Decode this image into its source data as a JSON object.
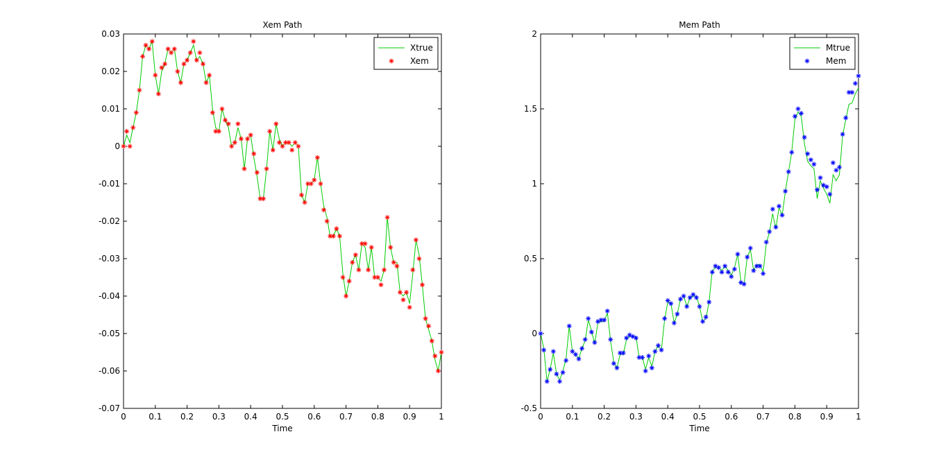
{
  "chart_data": [
    {
      "type": "line",
      "title": "Xem Path",
      "xlabel": "Time",
      "ylabel": "",
      "xlim": [
        0,
        1
      ],
      "ylim": [
        -0.07,
        0.03
      ],
      "grid": false,
      "legend_position": "top-right",
      "xticks": [
        0,
        0.1,
        0.2,
        0.3,
        0.4,
        0.5,
        0.6,
        0.7,
        0.8,
        0.9,
        1
      ],
      "xtick_labels": [
        "0",
        "0.1",
        "0.2",
        "0.3",
        "0.4",
        "0.5",
        "0.6",
        "0.7",
        "0.8",
        "0.9",
        "1"
      ],
      "yticks": [
        0.03,
        0.02,
        0.01,
        0,
        -0.01,
        -0.02,
        -0.03,
        -0.04,
        -0.05,
        -0.06,
        -0.07
      ],
      "ytick_labels": [
        "0.03",
        "0.02",
        "0.01",
        "0",
        "-0.01",
        "-0.02",
        "-0.03",
        "-0.04",
        "-0.05",
        "-0.06",
        "-0.07"
      ],
      "x": [
        0,
        0.01,
        0.02,
        0.03,
        0.04,
        0.05,
        0.06,
        0.07,
        0.08,
        0.09,
        0.1,
        0.11,
        0.12,
        0.13,
        0.14,
        0.15,
        0.16,
        0.17,
        0.18,
        0.19,
        0.2,
        0.21,
        0.22,
        0.23,
        0.24,
        0.25,
        0.26,
        0.27,
        0.28,
        0.29,
        0.3,
        0.31,
        0.32,
        0.33,
        0.34,
        0.35,
        0.36,
        0.37,
        0.38,
        0.39,
        0.4,
        0.41,
        0.42,
        0.43,
        0.44,
        0.45,
        0.46,
        0.47,
        0.48,
        0.49,
        0.5,
        0.51,
        0.52,
        0.53,
        0.54,
        0.55,
        0.56,
        0.57,
        0.58,
        0.59,
        0.6,
        0.61,
        0.62,
        0.63,
        0.64,
        0.65,
        0.66,
        0.67,
        0.68,
        0.69,
        0.7,
        0.71,
        0.72,
        0.73,
        0.74,
        0.75,
        0.76,
        0.77,
        0.78,
        0.79,
        0.8,
        0.81,
        0.82,
        0.83,
        0.84,
        0.85,
        0.86,
        0.87,
        0.88,
        0.89,
        0.9,
        0.91,
        0.92,
        0.93,
        0.94,
        0.95,
        0.96,
        0.97,
        0.98,
        0.99,
        1
      ],
      "series": [
        {
          "name": "Xtrue",
          "style": "line",
          "color": "#00cc00",
          "values": [
            0,
            0.003,
            0.001,
            0.005,
            0.009,
            0.015,
            0.024,
            0.027,
            0.026,
            0.028,
            0.019,
            0.014,
            0.02,
            0.022,
            0.026,
            0.025,
            0.026,
            0.02,
            0.017,
            0.022,
            0.023,
            0.025,
            0.027,
            0.023,
            0.024,
            0.022,
            0.017,
            0.019,
            0.01,
            0.005,
            0.004,
            0.01,
            0.007,
            0.005,
            0,
            0.001,
            0.005,
            0.002,
            -0.006,
            0.002,
            0.003,
            -0.003,
            -0.008,
            -0.014,
            -0.014,
            -0.006,
            0.004,
            -0.001,
            0.006,
            0.002,
            0,
            0.001,
            0.001,
            0,
            0.001,
            0,
            -0.013,
            -0.015,
            -0.01,
            -0.01,
            -0.009,
            -0.003,
            -0.01,
            -0.016,
            -0.019,
            -0.024,
            -0.024,
            -0.022,
            -0.024,
            -0.034,
            -0.04,
            -0.036,
            -0.031,
            -0.029,
            -0.033,
            -0.026,
            -0.027,
            -0.033,
            -0.027,
            -0.035,
            -0.035,
            -0.036,
            -0.033,
            -0.019,
            -0.027,
            -0.031,
            -0.031,
            -0.039,
            -0.04,
            -0.039,
            -0.042,
            -0.034,
            -0.025,
            -0.029,
            -0.037,
            -0.046,
            -0.049,
            -0.052,
            -0.057,
            -0.06,
            -0.055
          ]
        },
        {
          "name": "Xem",
          "style": "marker",
          "marker": "*",
          "color": "#ff0000",
          "values": [
            0,
            0.004,
            0,
            0.005,
            0.009,
            0.015,
            0.024,
            0.027,
            0.026,
            0.028,
            0.019,
            0.014,
            0.021,
            0.022,
            0.026,
            0.025,
            0.026,
            0.02,
            0.017,
            0.022,
            0.023,
            0.025,
            0.028,
            0.023,
            0.025,
            0.022,
            0.017,
            0.019,
            0.009,
            0.004,
            0.004,
            0.01,
            0.007,
            0.006,
            0,
            0.001,
            0.006,
            0.002,
            -0.006,
            0.002,
            0.003,
            -0.002,
            -0.007,
            -0.014,
            -0.014,
            -0.006,
            0.004,
            -0.001,
            0.006,
            0.001,
            0,
            0.001,
            0.001,
            -0.001,
            0.001,
            0,
            -0.013,
            -0.015,
            -0.01,
            -0.01,
            -0.009,
            -0.003,
            -0.01,
            -0.017,
            -0.02,
            -0.024,
            -0.024,
            -0.022,
            -0.024,
            -0.035,
            -0.04,
            -0.036,
            -0.031,
            -0.029,
            -0.033,
            -0.026,
            -0.026,
            -0.033,
            -0.027,
            -0.035,
            -0.035,
            -0.037,
            -0.033,
            -0.019,
            -0.027,
            -0.031,
            -0.032,
            -0.039,
            -0.041,
            -0.039,
            -0.043,
            -0.033,
            -0.025,
            -0.03,
            -0.037,
            -0.046,
            -0.048,
            -0.052,
            -0.056,
            -0.06,
            -0.055
          ]
        }
      ]
    },
    {
      "type": "line",
      "title": "Mem Path",
      "xlabel": "Time",
      "ylabel": "",
      "xlim": [
        0,
        1
      ],
      "ylim": [
        -0.5,
        2
      ],
      "grid": false,
      "legend_position": "top-right",
      "xticks": [
        0,
        0.1,
        0.2,
        0.3,
        0.4,
        0.5,
        0.6,
        0.7,
        0.8,
        0.9,
        1
      ],
      "xtick_labels": [
        "0",
        "0.1",
        "0.2",
        "0.3",
        "0.4",
        "0.5",
        "0.6",
        "0.7",
        "0.8",
        "0.9",
        "1"
      ],
      "yticks": [
        2,
        1.5,
        1,
        0.5,
        0,
        -0.5
      ],
      "ytick_labels": [
        "2",
        "1.5",
        "1",
        "0.5",
        "0",
        "-0.5"
      ],
      "x": [
        0,
        0.01,
        0.02,
        0.03,
        0.04,
        0.05,
        0.06,
        0.07,
        0.08,
        0.09,
        0.1,
        0.11,
        0.12,
        0.13,
        0.14,
        0.15,
        0.16,
        0.17,
        0.18,
        0.19,
        0.2,
        0.21,
        0.22,
        0.23,
        0.24,
        0.25,
        0.26,
        0.27,
        0.28,
        0.29,
        0.3,
        0.31,
        0.32,
        0.33,
        0.34,
        0.35,
        0.36,
        0.37,
        0.38,
        0.39,
        0.4,
        0.41,
        0.42,
        0.43,
        0.44,
        0.45,
        0.46,
        0.47,
        0.48,
        0.49,
        0.5,
        0.51,
        0.52,
        0.53,
        0.54,
        0.55,
        0.56,
        0.57,
        0.58,
        0.59,
        0.6,
        0.61,
        0.62,
        0.63,
        0.64,
        0.65,
        0.66,
        0.67,
        0.68,
        0.69,
        0.7,
        0.71,
        0.72,
        0.73,
        0.74,
        0.75,
        0.76,
        0.77,
        0.78,
        0.79,
        0.8,
        0.81,
        0.82,
        0.83,
        0.84,
        0.85,
        0.86,
        0.87,
        0.88,
        0.89,
        0.9,
        0.91,
        0.92,
        0.93,
        0.94,
        0.95,
        0.96,
        0.97,
        0.98,
        0.99,
        1
      ],
      "series": [
        {
          "name": "Mtrue",
          "style": "line",
          "color": "#00cc00",
          "values": [
            0,
            -0.1,
            -0.32,
            -0.24,
            -0.13,
            -0.27,
            -0.31,
            -0.25,
            -0.17,
            0.05,
            -0.12,
            -0.14,
            -0.17,
            -0.1,
            -0.05,
            0.09,
            0.02,
            -0.07,
            0.07,
            0.08,
            0.08,
            0.14,
            -0.05,
            -0.19,
            -0.23,
            -0.14,
            -0.14,
            -0.04,
            -0.02,
            -0.02,
            -0.02,
            -0.16,
            -0.16,
            -0.24,
            -0.16,
            -0.22,
            -0.12,
            -0.08,
            -0.11,
            0.09,
            0.21,
            0.2,
            0.07,
            0.13,
            0.23,
            0.25,
            0.18,
            0.24,
            0.25,
            0.25,
            0.18,
            0.08,
            0.1,
            0.21,
            0.42,
            0.44,
            0.44,
            0.42,
            0.45,
            0.42,
            0.39,
            0.44,
            0.53,
            0.35,
            0.33,
            0.51,
            0.56,
            0.42,
            0.46,
            0.46,
            0.41,
            0.6,
            0.68,
            0.8,
            0.7,
            0.84,
            0.79,
            0.95,
            1.08,
            1.21,
            1.43,
            1.48,
            1.45,
            1.27,
            1.15,
            1.12,
            1.1,
            0.9,
            1.02,
            0.97,
            0.93,
            0.87,
            1.06,
            1.02,
            1.06,
            1.32,
            1.43,
            1.53,
            1.54,
            1.6,
            1.64
          ]
        },
        {
          "name": "Mem",
          "style": "marker",
          "marker": "*",
          "color": "#0000ff",
          "values": [
            0,
            -0.11,
            -0.32,
            -0.24,
            -0.12,
            -0.27,
            -0.32,
            -0.26,
            -0.18,
            0.05,
            -0.12,
            -0.14,
            -0.17,
            -0.1,
            -0.04,
            0.1,
            0.01,
            -0.06,
            0.08,
            0.09,
            0.09,
            0.15,
            -0.04,
            -0.2,
            -0.23,
            -0.13,
            -0.13,
            -0.03,
            -0.01,
            -0.02,
            -0.03,
            -0.16,
            -0.16,
            -0.25,
            -0.15,
            -0.23,
            -0.12,
            -0.08,
            -0.11,
            0.1,
            0.22,
            0.2,
            0.07,
            0.13,
            0.23,
            0.25,
            0.18,
            0.24,
            0.26,
            0.24,
            0.18,
            0.08,
            0.11,
            0.21,
            0.41,
            0.45,
            0.44,
            0.41,
            0.45,
            0.41,
            0.38,
            0.43,
            0.53,
            0.34,
            0.33,
            0.51,
            0.57,
            0.42,
            0.45,
            0.45,
            0.4,
            0.61,
            0.68,
            0.83,
            0.71,
            0.85,
            0.79,
            0.95,
            1.08,
            1.21,
            1.45,
            1.5,
            1.47,
            1.31,
            1.2,
            1.16,
            1.13,
            0.96,
            1.04,
            0.99,
            0.98,
            0.93,
            1.14,
            1.09,
            1.11,
            1.33,
            1.44,
            1.61,
            1.61,
            1.67,
            1.72
          ]
        }
      ]
    }
  ]
}
